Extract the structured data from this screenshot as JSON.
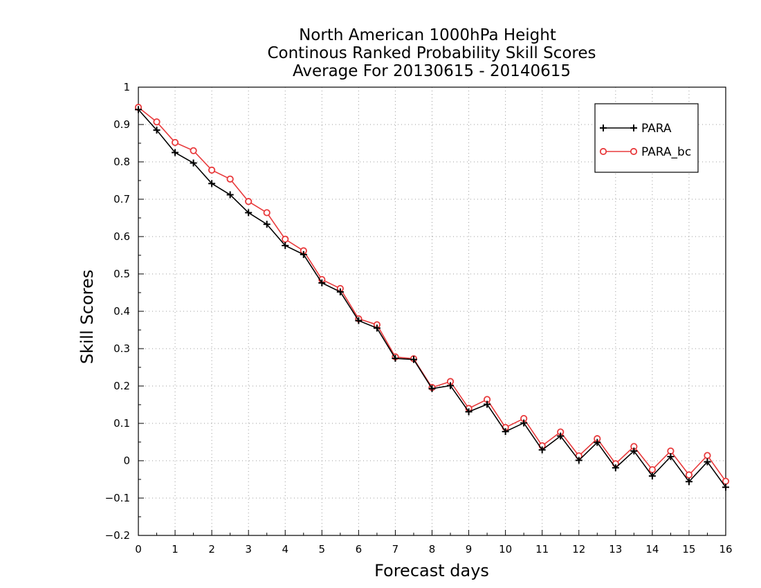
{
  "chart_data": {
    "type": "line",
    "title": [
      "North American 1000hPa Height",
      "Continous Ranked Probability Skill Scores",
      "Average For 20130615 - 20140615"
    ],
    "xlabel": "Forecast days",
    "ylabel": "Skill Scores",
    "xlim": [
      0,
      16
    ],
    "ylim": [
      -0.2,
      1
    ],
    "x_ticks": [
      "0",
      "1",
      "2",
      "3",
      "4",
      "5",
      "6",
      "7",
      "8",
      "9",
      "10",
      "11",
      "12",
      "13",
      "14",
      "15",
      "16"
    ],
    "y_ticks": [
      "−0.2",
      "−0.1",
      "0",
      "0.1",
      "0.2",
      "0.3",
      "0.4",
      "0.5",
      "0.6",
      "0.7",
      "0.8",
      "0.9",
      "1"
    ],
    "grid": true,
    "legend_position": "top-right",
    "x": [
      0,
      0.5,
      1,
      1.5,
      2,
      2.5,
      3,
      3.5,
      4,
      4.5,
      5,
      5.5,
      6,
      6.5,
      7,
      7.5,
      8,
      8.5,
      9,
      9.5,
      10,
      10.5,
      11,
      11.5,
      12,
      12.5,
      13,
      13.5,
      14,
      14.5,
      15,
      15.5,
      16
    ],
    "series": [
      {
        "name": "PARA",
        "color": "#000000",
        "marker": "plus",
        "values": [
          0.94,
          0.885,
          0.825,
          0.797,
          0.742,
          0.712,
          0.664,
          0.633,
          0.576,
          0.552,
          0.476,
          0.452,
          0.375,
          0.355,
          0.274,
          0.271,
          0.193,
          0.201,
          0.131,
          0.151,
          0.078,
          0.101,
          0.029,
          0.066,
          0.001,
          0.049,
          -0.019,
          0.026,
          -0.041,
          0.011,
          -0.056,
          -0.003,
          -0.071
        ]
      },
      {
        "name": "PARA_bc",
        "color": "#e8393b",
        "marker": "circle",
        "values": [
          0.946,
          0.907,
          0.852,
          0.83,
          0.778,
          0.754,
          0.694,
          0.664,
          0.593,
          0.562,
          0.485,
          0.461,
          0.38,
          0.364,
          0.278,
          0.273,
          0.196,
          0.212,
          0.14,
          0.164,
          0.089,
          0.113,
          0.04,
          0.077,
          0.013,
          0.059,
          -0.008,
          0.038,
          -0.024,
          0.026,
          -0.038,
          0.014,
          -0.055
        ]
      }
    ]
  }
}
